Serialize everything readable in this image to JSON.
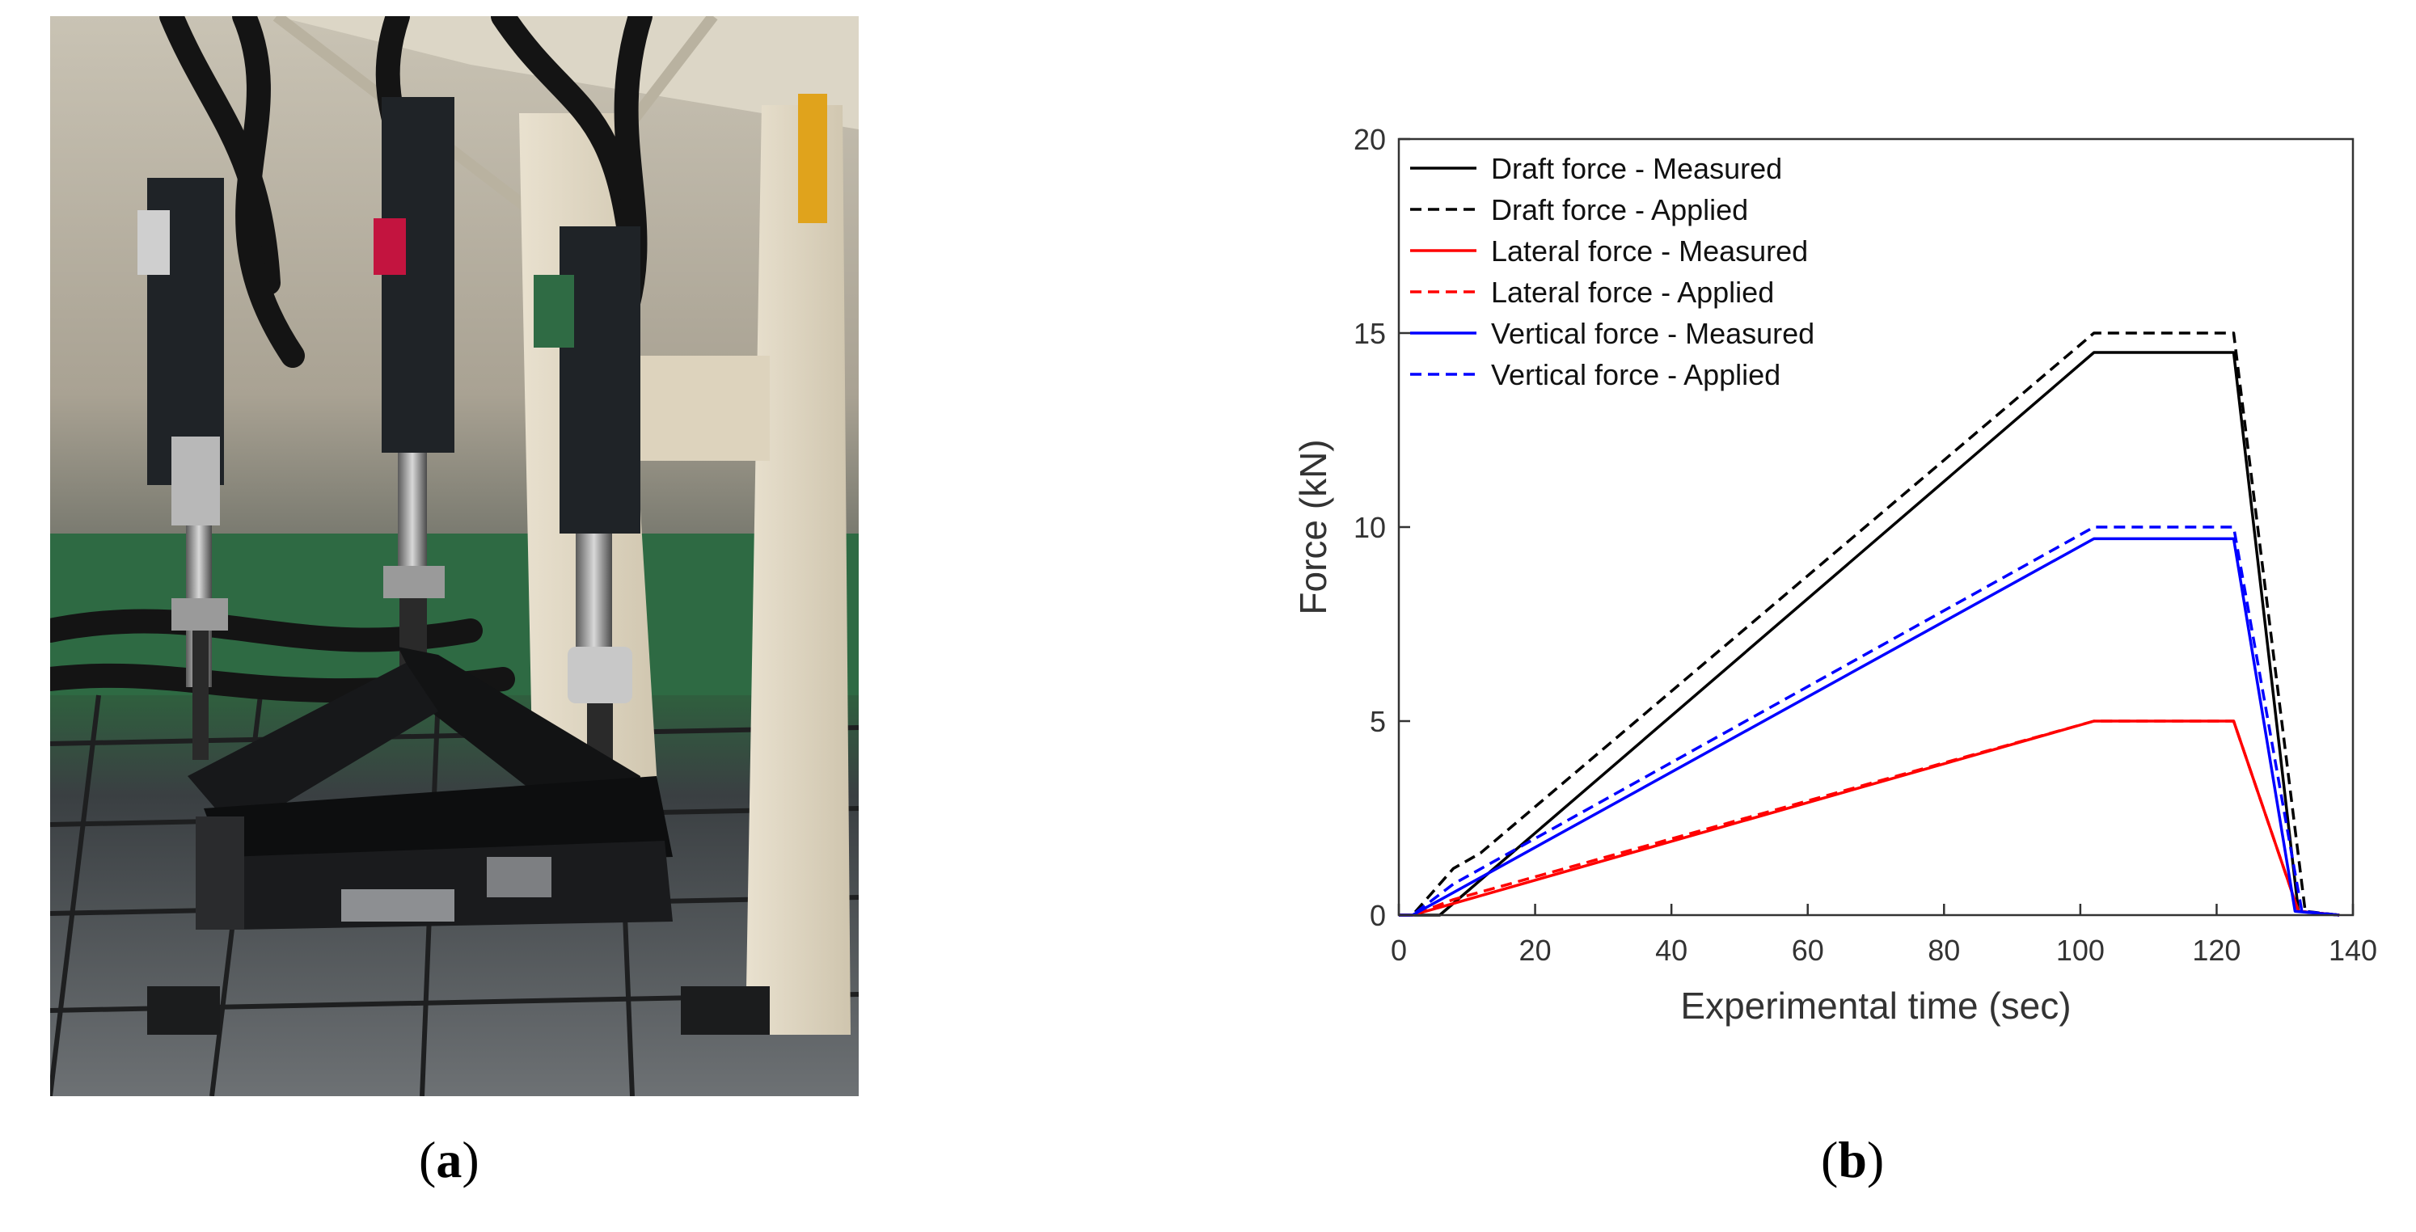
{
  "panels": {
    "a": {
      "label": "a"
    },
    "b": {
      "label": "b"
    }
  },
  "chart_data": {
    "type": "line",
    "title": "",
    "xlabel": "Experimental time (sec)",
    "ylabel": "Force (kN)",
    "xlim": [
      0,
      140
    ],
    "ylim": [
      0,
      20
    ],
    "xticks": [
      0,
      20,
      40,
      60,
      80,
      100,
      120,
      140
    ],
    "yticks": [
      0,
      5,
      10,
      15,
      20
    ],
    "grid": false,
    "legend": "top-left",
    "series": [
      {
        "name": "Draft force - Measured",
        "color": "#000000",
        "dash": "solid",
        "x": [
          0,
          6,
          102,
          122.5,
          132,
          138
        ],
        "y": [
          0,
          0,
          14.5,
          14.5,
          0.1,
          0
        ]
      },
      {
        "name": "Draft force - Applied",
        "color": "#000000",
        "dash": "dashed",
        "x": [
          0,
          2,
          8,
          12,
          102,
          122.5,
          133,
          138
        ],
        "y": [
          0,
          0,
          1.2,
          1.6,
          15.0,
          15.0,
          0.1,
          0
        ]
      },
      {
        "name": "Lateral force - Measured",
        "color": "#ff0000",
        "dash": "solid",
        "x": [
          0,
          2,
          102,
          122.5,
          132,
          138
        ],
        "y": [
          0,
          0,
          5.0,
          5.0,
          0.1,
          0
        ]
      },
      {
        "name": "Lateral force - Applied",
        "color": "#ff0000",
        "dash": "dashed",
        "x": [
          0,
          2,
          8,
          102,
          122.5,
          132,
          138
        ],
        "y": [
          0,
          0,
          0.4,
          5.0,
          5.0,
          0.1,
          0
        ]
      },
      {
        "name": "Vertical force - Measured",
        "color": "#0000ff",
        "dash": "solid",
        "x": [
          0,
          2,
          102,
          122.5,
          131.5,
          138
        ],
        "y": [
          0,
          0,
          9.7,
          9.7,
          0.1,
          0
        ]
      },
      {
        "name": "Vertical force - Applied",
        "color": "#0000ff",
        "dash": "dashed",
        "x": [
          0,
          2,
          8,
          102,
          122.5,
          132.5,
          138
        ],
        "y": [
          0,
          0,
          0.8,
          10.0,
          10.0,
          0.1,
          0
        ]
      }
    ]
  }
}
